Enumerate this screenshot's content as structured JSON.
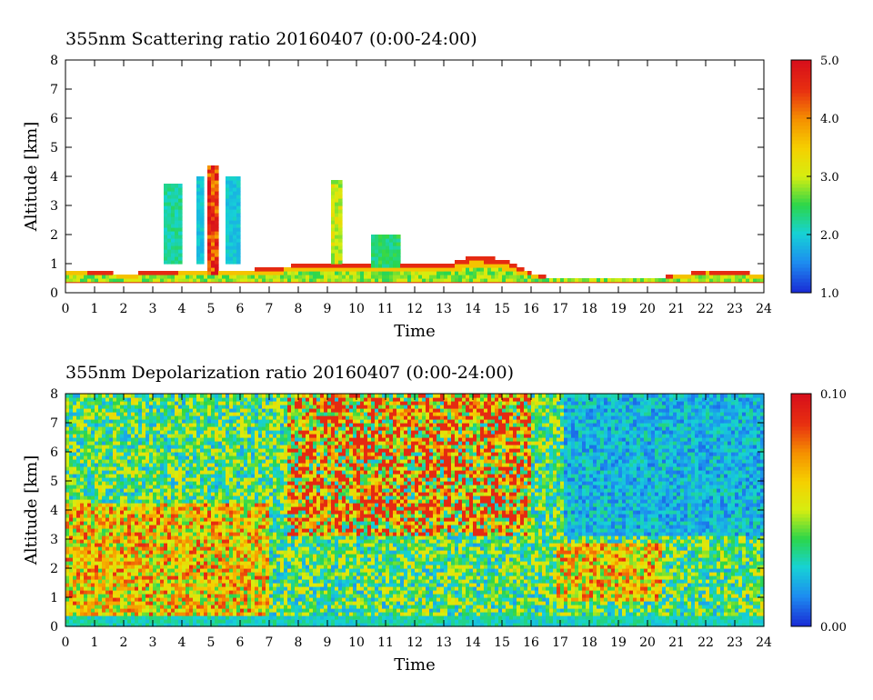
{
  "chart_data": [
    {
      "type": "heatmap",
      "title": "355nm Scattering ratio  20160407 (0:00-24:00)",
      "xlabel": "Time",
      "ylabel": "Altitude [km]",
      "xlim": [
        0,
        24
      ],
      "ylim": [
        0,
        8
      ],
      "x_ticks": [
        "0",
        "1",
        "2",
        "3",
        "4",
        "5",
        "6",
        "7",
        "8",
        "9",
        "10",
        "11",
        "12",
        "13",
        "14",
        "15",
        "16",
        "17",
        "18",
        "19",
        "20",
        "21",
        "22",
        "23",
        "24"
      ],
      "y_ticks": [
        "0",
        "1",
        "2",
        "3",
        "4",
        "5",
        "6",
        "7",
        "8"
      ],
      "colorbar": {
        "min": 1.0,
        "max": 5.0,
        "ticks": [
          "1.0",
          "2.0",
          "3.0",
          "4.0",
          "5.0"
        ],
        "colors": [
          "#1a2fd6",
          "#1d8cf0",
          "#16d2d6",
          "#2bd64a",
          "#d6ee10",
          "#f5d000",
          "#f59000",
          "#e83010",
          "#d8101a"
        ]
      },
      "features": {
        "boundary_layer_top_km": [
          {
            "t": 0,
            "h": 0.75
          },
          {
            "t": 2,
            "h": 0.6
          },
          {
            "t": 4,
            "h": 0.7
          },
          {
            "t": 6,
            "h": 0.7
          },
          {
            "t": 8,
            "h": 0.9
          },
          {
            "t": 10,
            "h": 1.0
          },
          {
            "t": 12,
            "h": 0.9
          },
          {
            "t": 13,
            "h": 0.9
          },
          {
            "t": 14,
            "h": 1.2
          },
          {
            "t": 15,
            "h": 1.1
          },
          {
            "t": 16,
            "h": 0.6
          },
          {
            "t": 17,
            "h": 0.4
          },
          {
            "t": 20,
            "h": 0.4
          },
          {
            "t": 22,
            "h": 0.7
          },
          {
            "t": 24,
            "h": 0.6
          }
        ],
        "clouds": [
          {
            "t0": 3.3,
            "t1": 3.9,
            "h0": 0.9,
            "h1": 3.7,
            "level": 2.3
          },
          {
            "t0": 4.4,
            "t1": 4.7,
            "h0": 0.9,
            "h1": 4.0,
            "level": 2.0
          },
          {
            "t0": 4.8,
            "t1": 5.15,
            "h0": 0.6,
            "h1": 4.3,
            "level": 4.8
          },
          {
            "t0": 5.5,
            "t1": 5.9,
            "h0": 0.9,
            "h1": 3.9,
            "level": 2.0
          },
          {
            "t0": 9.1,
            "t1": 9.5,
            "h0": 0.9,
            "h1": 3.8,
            "level": 3.2
          },
          {
            "t0": 10.4,
            "t1": 11.5,
            "h0": 0.8,
            "h1": 2.0,
            "level": 2.5
          }
        ]
      }
    },
    {
      "type": "heatmap",
      "title": "355nm Depolarization ratio  20160407 (0:00-24:00)",
      "xlabel": "Time",
      "ylabel": "Altitude [km]",
      "xlim": [
        0,
        24
      ],
      "ylim": [
        0,
        8
      ],
      "x_ticks": [
        "0",
        "1",
        "2",
        "3",
        "4",
        "5",
        "6",
        "7",
        "8",
        "9",
        "10",
        "11",
        "12",
        "13",
        "14",
        "15",
        "16",
        "17",
        "18",
        "19",
        "20",
        "21",
        "22",
        "23",
        "24"
      ],
      "y_ticks": [
        "0",
        "1",
        "2",
        "3",
        "4",
        "5",
        "6",
        "7",
        "8"
      ],
      "colorbar": {
        "min": 0.0,
        "max": 0.1,
        "ticks": [
          "0.00",
          "0.10"
        ],
        "colors": [
          "#1a2fd6",
          "#1d8cf0",
          "#16d2d6",
          "#2bd64a",
          "#d6ee10",
          "#f5d000",
          "#f59000",
          "#e83010",
          "#d8101a"
        ]
      },
      "features": {
        "dust_layer_km": [
          {
            "t0": 0,
            "t1": 7,
            "h0": 0.3,
            "h1": 4.2
          },
          {
            "t0": 16.8,
            "t1": 20.5,
            "h0": 0.8,
            "h1": 2.8
          }
        ]
      }
    }
  ]
}
